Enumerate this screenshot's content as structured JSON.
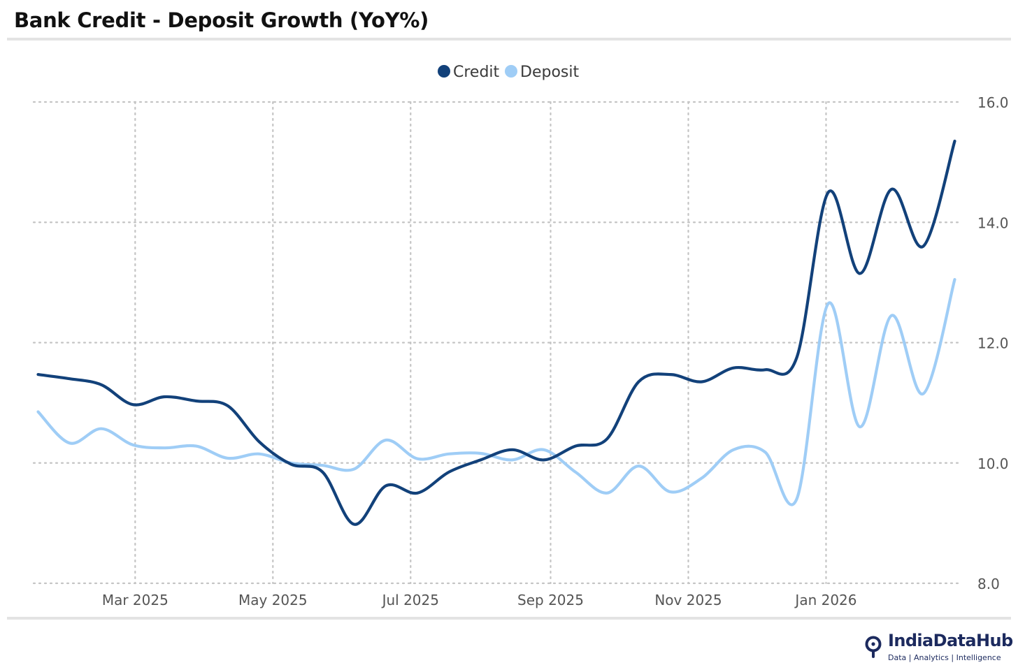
{
  "header": {
    "title": "Bank Credit - Deposit Growth (YoY%)"
  },
  "brand": {
    "name": "IndiaDataHub",
    "tagline": "Data | Analytics | Intelligence"
  },
  "colors": {
    "credit": "#12417a",
    "deposit": "#9fcdf6",
    "grid": "#c4c4c4",
    "tick_text": "#555555",
    "brand": "#1c2a5e"
  },
  "chart_data": {
    "type": "line",
    "title": "Bank Credit - Deposit Growth (YoY%)",
    "xlabel": "",
    "ylabel": "",
    "y_axis_side": "right",
    "ylim": [
      8,
      16
    ],
    "yticks": [
      8,
      10,
      12,
      14,
      16
    ],
    "ytick_labels": [
      "8.0",
      "10.0",
      "12.0",
      "14.0",
      "16.0"
    ],
    "grid": true,
    "legend_position": "top-center",
    "x_range": [
      "2025-01-15",
      "2026-03-01"
    ],
    "xticks": [
      "2025-03-01",
      "2025-05-01",
      "2025-07-01",
      "2025-09-01",
      "2025-11-01",
      "2026-01-01"
    ],
    "xtick_labels": [
      "Mar 2025",
      "May 2025",
      "Jul 2025",
      "Sep 2025",
      "Nov 2025",
      "Jan 2026"
    ],
    "series": [
      {
        "name": "Credit",
        "color": "#12417a",
        "points": [
          [
            "2025-01-17",
            11.47
          ],
          [
            "2025-01-31",
            11.4
          ],
          [
            "2025-02-14",
            11.3
          ],
          [
            "2025-02-28",
            10.97
          ],
          [
            "2025-03-14",
            11.1
          ],
          [
            "2025-03-28",
            11.03
          ],
          [
            "2025-04-11",
            10.95
          ],
          [
            "2025-04-25",
            10.35
          ],
          [
            "2025-05-09",
            9.98
          ],
          [
            "2025-05-23",
            9.85
          ],
          [
            "2025-06-06",
            8.98
          ],
          [
            "2025-06-20",
            9.62
          ],
          [
            "2025-07-04",
            9.5
          ],
          [
            "2025-07-18",
            9.85
          ],
          [
            "2025-08-01",
            10.05
          ],
          [
            "2025-08-15",
            10.22
          ],
          [
            "2025-08-29",
            10.05
          ],
          [
            "2025-09-12",
            10.28
          ],
          [
            "2025-09-26",
            10.4
          ],
          [
            "2025-10-10",
            11.35
          ],
          [
            "2025-10-24",
            11.47
          ],
          [
            "2025-11-07",
            11.35
          ],
          [
            "2025-11-21",
            11.58
          ],
          [
            "2025-12-05",
            11.55
          ],
          [
            "2025-12-19",
            11.75
          ],
          [
            "2026-01-02",
            14.5
          ],
          [
            "2026-01-16",
            13.15
          ],
          [
            "2026-01-30",
            14.55
          ],
          [
            "2026-02-13",
            13.6
          ],
          [
            "2026-02-27",
            15.35
          ]
        ]
      },
      {
        "name": "Deposit",
        "color": "#9fcdf6",
        "points": [
          [
            "2025-01-17",
            10.85
          ],
          [
            "2025-01-31",
            10.33
          ],
          [
            "2025-02-14",
            10.57
          ],
          [
            "2025-02-28",
            10.3
          ],
          [
            "2025-03-14",
            10.25
          ],
          [
            "2025-03-28",
            10.28
          ],
          [
            "2025-04-11",
            10.08
          ],
          [
            "2025-04-25",
            10.15
          ],
          [
            "2025-05-09",
            10.0
          ],
          [
            "2025-05-23",
            9.96
          ],
          [
            "2025-06-06",
            9.9
          ],
          [
            "2025-06-20",
            10.38
          ],
          [
            "2025-07-04",
            10.07
          ],
          [
            "2025-07-18",
            10.15
          ],
          [
            "2025-08-01",
            10.16
          ],
          [
            "2025-08-15",
            10.05
          ],
          [
            "2025-08-29",
            10.22
          ],
          [
            "2025-09-12",
            9.85
          ],
          [
            "2025-09-26",
            9.5
          ],
          [
            "2025-10-10",
            9.95
          ],
          [
            "2025-10-24",
            9.52
          ],
          [
            "2025-11-07",
            9.75
          ],
          [
            "2025-11-21",
            10.22
          ],
          [
            "2025-12-05",
            10.18
          ],
          [
            "2025-12-19",
            9.4
          ],
          [
            "2026-01-02",
            12.65
          ],
          [
            "2026-01-16",
            10.6
          ],
          [
            "2026-01-30",
            12.45
          ],
          [
            "2026-02-13",
            11.15
          ],
          [
            "2026-02-27",
            13.05
          ]
        ]
      }
    ]
  }
}
